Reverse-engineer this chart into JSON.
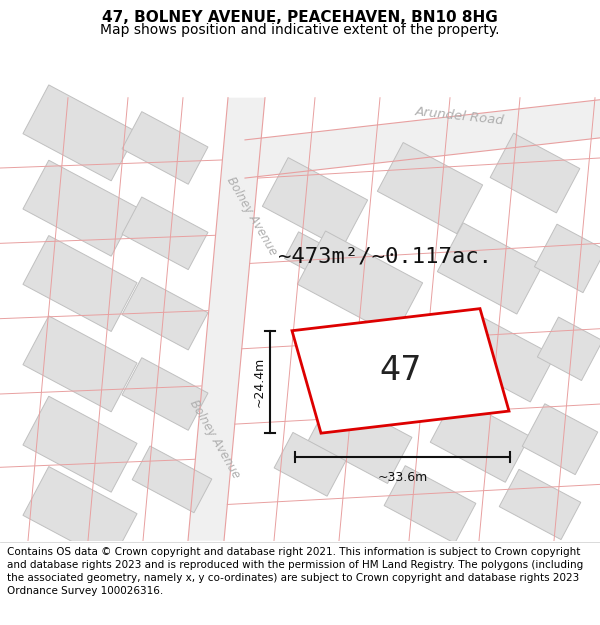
{
  "title": "47, BOLNEY AVENUE, PEACEHAVEN, BN10 8HG",
  "subtitle": "Map shows position and indicative extent of the property.",
  "footer": "Contains OS data © Crown copyright and database right 2021. This information is subject to Crown copyright and database rights 2023 and is reproduced with the permission of HM Land Registry. The polygons (including the associated geometry, namely x, y co-ordinates) are subject to Crown copyright and database rights 2023 Ordnance Survey 100026316.",
  "area_label": "~473m²/~0.117ac.",
  "width_label": "~33.6m",
  "height_label": "~24.4m",
  "number_label": "47",
  "road_label_bolney_upper": "Bolney Avenue",
  "road_label_bolney_lower": "Bolney Avenue",
  "road_label_arundel": "Arundel Road",
  "map_bg": "#ffffff",
  "building_fill": "#e0e0e0",
  "building_stroke": "#c0c0c0",
  "plot_line": "#e8a0a0",
  "plot_red": "#dd0000",
  "plot_fill": "#ffffff",
  "dim_color": "#111111",
  "road_text_color": "#b0b0b0",
  "title_fontsize": 11,
  "subtitle_fontsize": 10,
  "footer_fontsize": 7.5,
  "area_fontsize": 16,
  "number_fontsize": 24,
  "dim_fontsize": 9,
  "road_fontsize": 8.5
}
